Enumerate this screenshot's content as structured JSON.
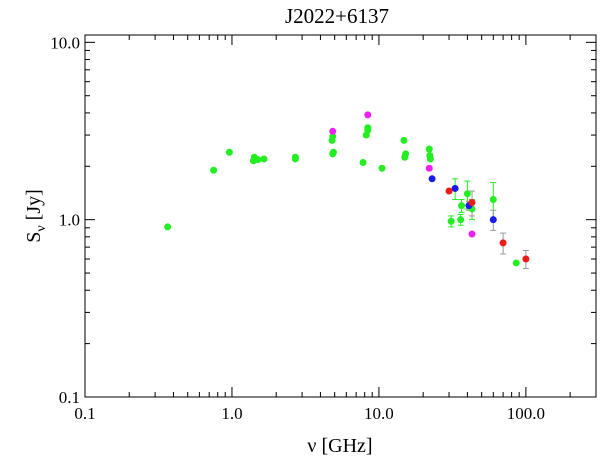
{
  "chart_data": {
    "type": "scatter",
    "title": "J2022+6137",
    "xlabel": "ν [GHz]",
    "ylabel": {
      "main": "S",
      "sub": "ν",
      "unit": " [Jy]"
    },
    "xscale": "log",
    "yscale": "log",
    "xlim": [
      0.1,
      300
    ],
    "ylim": [
      0.1,
      11
    ],
    "xticks": [
      {
        "value": 0.1,
        "label": "0.1"
      },
      {
        "value": 1,
        "label": "1.0"
      },
      {
        "value": 10,
        "label": "10.0"
      },
      {
        "value": 100,
        "label": "100.0"
      }
    ],
    "yticks": [
      {
        "value": 0.1,
        "label": "0.1"
      },
      {
        "value": 1,
        "label": "1.0"
      },
      {
        "value": 10,
        "label": "10.0"
      }
    ],
    "grid": false,
    "colors": {
      "green": "#22ee22",
      "magenta": "#ee22ee",
      "blue": "#1a1aee",
      "red": "#ee1a1a",
      "errorbar": "#999999"
    },
    "series": [
      {
        "color_key": "green",
        "points": [
          {
            "x": 0.365,
            "y": 0.91
          },
          {
            "x": 0.75,
            "y": 1.9
          },
          {
            "x": 0.96,
            "y": 2.4
          },
          {
            "x": 1.4,
            "y": 2.15
          },
          {
            "x": 1.42,
            "y": 2.25
          },
          {
            "x": 1.45,
            "y": 2.2
          },
          {
            "x": 1.5,
            "y": 2.18
          },
          {
            "x": 1.65,
            "y": 2.2
          },
          {
            "x": 2.7,
            "y": 2.2
          },
          {
            "x": 2.7,
            "y": 2.25
          },
          {
            "x": 4.8,
            "y": 2.8
          },
          {
            "x": 4.85,
            "y": 2.95
          },
          {
            "x": 4.85,
            "y": 2.35
          },
          {
            "x": 4.9,
            "y": 2.4
          },
          {
            "x": 7.8,
            "y": 2.1
          },
          {
            "x": 8.2,
            "y": 3.0
          },
          {
            "x": 8.4,
            "y": 3.3
          },
          {
            "x": 8.4,
            "y": 3.2
          },
          {
            "x": 10.5,
            "y": 1.95
          },
          {
            "x": 14.8,
            "y": 2.8
          },
          {
            "x": 15.0,
            "y": 2.25
          },
          {
            "x": 15.2,
            "y": 2.35
          },
          {
            "x": 22.0,
            "y": 2.5
          },
          {
            "x": 22.2,
            "y": 2.3
          },
          {
            "x": 22.4,
            "y": 2.2
          },
          {
            "x": 31.0,
            "y": 0.98,
            "err": 0.07
          },
          {
            "x": 33.0,
            "y": 1.5,
            "err": 0.2
          },
          {
            "x": 36.0,
            "y": 1.0,
            "err": 0.07
          },
          {
            "x": 36.5,
            "y": 1.2,
            "err": 0.1
          },
          {
            "x": 40.0,
            "y": 1.4,
            "err": 0.25
          },
          {
            "x": 43.0,
            "y": 1.15,
            "err": 0.15
          },
          {
            "x": 60.0,
            "y": 1.3,
            "err": 0.32
          },
          {
            "x": 86.0,
            "y": 0.57
          }
        ]
      },
      {
        "color_key": "magenta",
        "points": [
          {
            "x": 4.85,
            "y": 3.15
          },
          {
            "x": 8.4,
            "y": 3.9
          },
          {
            "x": 22.0,
            "y": 1.95
          },
          {
            "x": 43.0,
            "y": 0.83
          }
        ]
      },
      {
        "color_key": "blue",
        "points": [
          {
            "x": 23.0,
            "y": 1.7
          },
          {
            "x": 33.0,
            "y": 1.5
          },
          {
            "x": 41.0,
            "y": 1.2,
            "err": 0.07
          },
          {
            "x": 60.0,
            "y": 1.0,
            "err": 0.13
          }
        ]
      },
      {
        "color_key": "red",
        "points": [
          {
            "x": 30.0,
            "y": 1.45
          },
          {
            "x": 43.0,
            "y": 1.25,
            "err": 0.2
          },
          {
            "x": 70.0,
            "y": 0.74,
            "err": 0.1
          },
          {
            "x": 100.0,
            "y": 0.6,
            "err": 0.07
          }
        ]
      }
    ]
  }
}
